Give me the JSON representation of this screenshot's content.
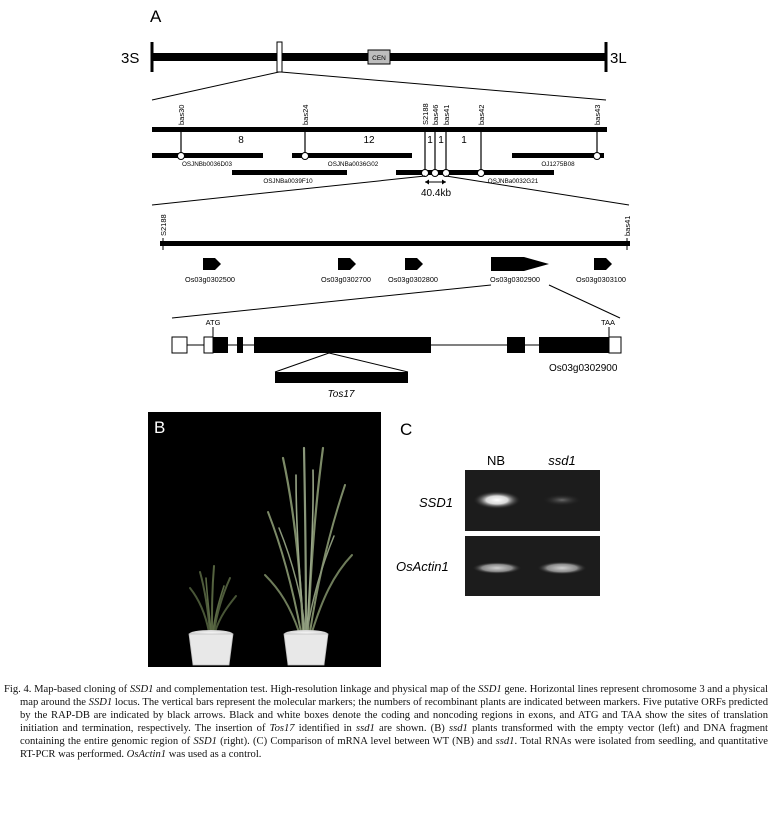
{
  "panel_a": {
    "label": "A",
    "chrom_left": "3S",
    "chrom_right": "3L",
    "centromere": "CEN",
    "markers": [
      "bas30",
      "bas24",
      "S2188",
      "bas46",
      "bas41",
      "bas42",
      "bas43"
    ],
    "recombinants": [
      "8",
      "12",
      "1",
      "1",
      "1"
    ],
    "bacs": [
      "OSJNBb0036D03",
      "OSJNBa0039F10",
      "OSJNBa0036G02",
      "OSJNBa0032G21",
      "OJ1275B08"
    ],
    "distance": "40.4kb",
    "zoom_markers": [
      "S2188",
      "bas41"
    ],
    "orfs": [
      "Os03g0302500",
      "Os03g0302700",
      "Os03g0302800",
      "Os03g0302900",
      "Os03g0303100"
    ],
    "start_codon": "ATG",
    "stop_codon": "TAA",
    "insertion": "Tos17",
    "gene_label": "Os03g0302900"
  },
  "panel_b": {
    "label": "B"
  },
  "panel_c": {
    "label": "C",
    "lanes": [
      "NB",
      "ssd1"
    ],
    "rows": [
      "SSD1",
      "OsActin1"
    ]
  },
  "caption": {
    "lead": "Fig. 4.  Map-based cloning of ",
    "segments": [
      {
        "t": "SSD1",
        "i": true
      },
      {
        "t": " and complementation test. High-resolution linkage and physical map of the ",
        "i": false
      },
      {
        "t": "SSD1",
        "i": true
      },
      {
        "t": " gene. Horizontal lines represent chromosome 3 and a physical map around the ",
        "i": false
      },
      {
        "t": "SSD1",
        "i": true
      },
      {
        "t": " locus. The vertical bars represent the molecular markers; the numbers of recombinant plants are indicated between markers. Five putative ORFs predicted by the RAP-DB are indicated by black arrows. Black and white boxes denote the coding and noncoding regions in exons, and ATG and TAA show the sites of translation initiation and termination, respectively. The insertion of ",
        "i": false
      },
      {
        "t": "Tos17",
        "i": true
      },
      {
        "t": " identified in ",
        "i": false
      },
      {
        "t": "ssd1",
        "i": true
      },
      {
        "t": " are shown. (B) ",
        "i": false
      },
      {
        "t": "ssd1",
        "i": true
      },
      {
        "t": " plants transformed with the empty vector (left) and DNA fragment containing the entire genomic region of ",
        "i": false
      },
      {
        "t": "SSD1",
        "i": true
      },
      {
        "t": " (right). (C) Comparison of mRNA level between WT (NB) and ",
        "i": false
      },
      {
        "t": "ssd1",
        "i": true
      },
      {
        "t": ". Total RNAs were isolated from seedling, and quantitative RT-PCR was performed. ",
        "i": false
      },
      {
        "t": "OsActin1",
        "i": true
      },
      {
        "t": " was used as a control.",
        "i": false
      }
    ]
  }
}
